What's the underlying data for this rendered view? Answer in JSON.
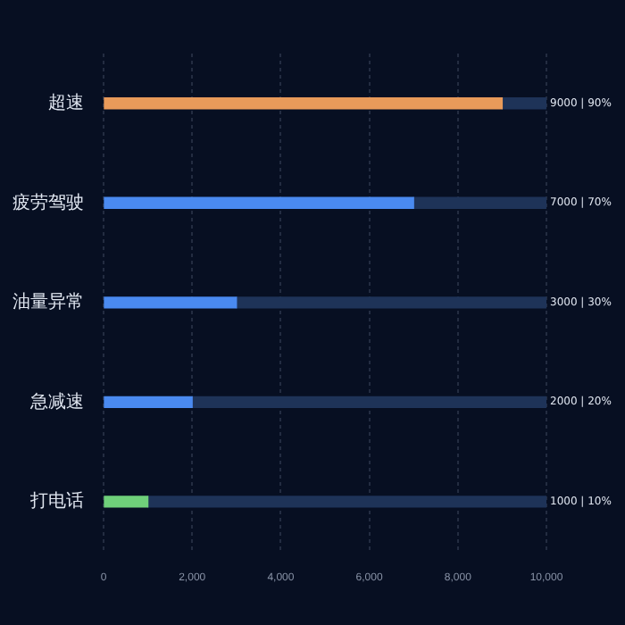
{
  "chart_data": {
    "type": "bar",
    "orientation": "horizontal",
    "stacked": true,
    "categories": [
      "超速",
      "疲劳驾驶",
      "油量异常",
      "急减速",
      "打电话"
    ],
    "series": [
      {
        "colors": [
          "#e89a5a",
          "#4a8af0",
          "#4a8af0",
          "#4a8af0",
          "#6fd07a"
        ],
        "values": [
          9000,
          7000,
          3000,
          2000,
          1000
        ],
        "value_labels": [
          "9000 | 90%",
          "7000 | 70%",
          "3000 | 30%",
          "2000 | 20%",
          "1000 | 10%"
        ]
      },
      {
        "color": "#1e3358",
        "values": [
          1000,
          3000,
          7000,
          8000,
          9000
        ]
      }
    ],
    "xlim": [
      0,
      10000
    ],
    "xticks": [
      0,
      {
        "value": 2000,
        "label": "2,000"
      },
      {
        "value": 4000,
        "label": "4,000"
      },
      {
        "value": 6000,
        "label": "6,000"
      },
      {
        "value": 8000,
        "label": "8,000"
      },
      {
        "value": 10000,
        "label": "10,000"
      }
    ],
    "grid": "x",
    "legend": false
  }
}
